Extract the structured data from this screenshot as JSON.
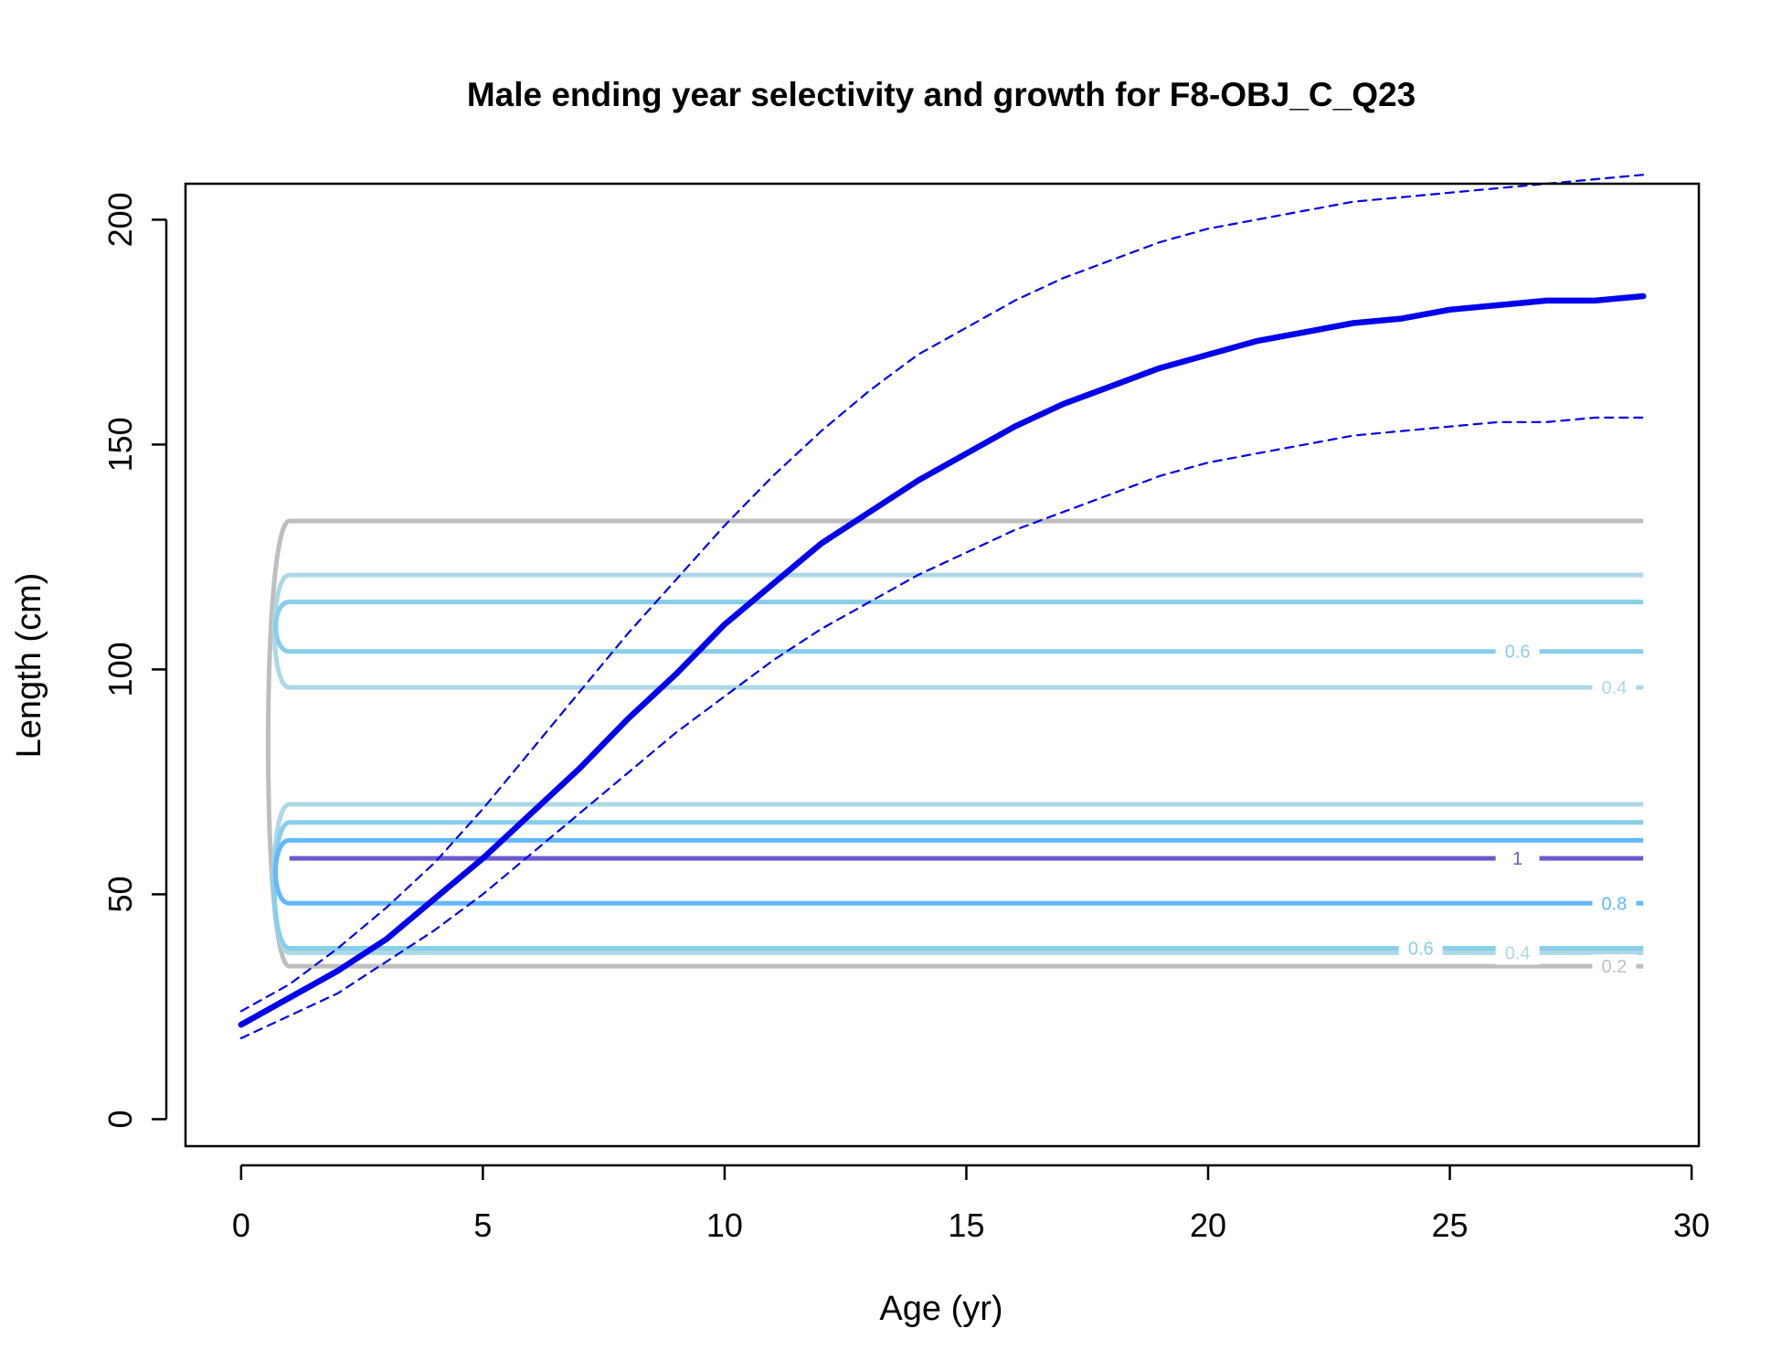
{
  "chart_data": {
    "type": "line",
    "title": "Male ending year selectivity and growth for F8-OBJ_C_Q23",
    "xlabel": "Age (yr)",
    "ylabel": "Length (cm)",
    "xlim": [
      -1.15,
      30.15
    ],
    "ylim": [
      -6,
      208
    ],
    "x_ticks": [
      0,
      5,
      10,
      15,
      20,
      25,
      30
    ],
    "y_ticks": [
      0,
      50,
      100,
      150,
      200
    ],
    "grid": false,
    "legend": "none",
    "series": [
      {
        "role": "mean",
        "color": "#0000ee",
        "style": "solid-thick",
        "x": [
          0,
          1,
          2,
          3,
          4,
          5,
          6,
          7,
          8,
          9,
          10,
          11,
          12,
          13,
          14,
          15,
          16,
          17,
          18,
          19,
          20,
          21,
          22,
          23,
          24,
          25,
          26,
          27,
          28,
          29
        ],
        "y": [
          21,
          27,
          33,
          40,
          49,
          58,
          68,
          78,
          89,
          99,
          110,
          119,
          128,
          135,
          142,
          148,
          154,
          159,
          163,
          167,
          170,
          173,
          175,
          177,
          178,
          180,
          181,
          182,
          182,
          183
        ]
      },
      {
        "role": "upper",
        "color": "#0000ee",
        "style": "dashed",
        "x": [
          0,
          1,
          2,
          3,
          4,
          5,
          6,
          7,
          8,
          9,
          10,
          11,
          12,
          13,
          14,
          15,
          16,
          17,
          18,
          19,
          20,
          21,
          22,
          23,
          24,
          25,
          26,
          27,
          28,
          29
        ],
        "y": [
          24,
          30,
          38,
          47,
          57,
          69,
          82,
          95,
          108,
          120,
          132,
          143,
          153,
          162,
          170,
          176,
          182,
          187,
          191,
          195,
          198,
          200,
          202,
          204,
          205,
          206,
          207,
          208,
          209,
          210
        ]
      },
      {
        "role": "lower",
        "color": "#0000ee",
        "style": "dashed",
        "x": [
          0,
          1,
          2,
          3,
          4,
          5,
          6,
          7,
          8,
          9,
          10,
          11,
          12,
          13,
          14,
          15,
          16,
          17,
          18,
          19,
          20,
          21,
          22,
          23,
          24,
          25,
          26,
          27,
          28,
          29
        ],
        "y": [
          18,
          23,
          28,
          35,
          42,
          50,
          59,
          68,
          77,
          86,
          94,
          102,
          109,
          115,
          121,
          126,
          131,
          135,
          139,
          143,
          146,
          148,
          150,
          152,
          153,
          154,
          155,
          155,
          156,
          156
        ]
      }
    ],
    "contours": [
      {
        "level": 0.2,
        "color": "#bebebe",
        "label": "0.2",
        "y_low": 34,
        "y_high": 133,
        "x_label": 28.4
      },
      {
        "level": 0.4,
        "color": "#add8e6",
        "label": "0.4",
        "y_low": 37,
        "y_high": 70,
        "x_label": 26.4
      },
      {
        "level": 0.4,
        "color": "#add8e6",
        "label": "0.4",
        "y_low": 96,
        "y_high": 121,
        "x_label": 28.4
      },
      {
        "level": 0.6,
        "color": "#87ceeb",
        "label": "0.6",
        "y_low": 38,
        "y_high": 66,
        "x_label": 24.4
      },
      {
        "level": 0.6,
        "color": "#87ceeb",
        "label": "0.6",
        "y_low": 104,
        "y_high": 115,
        "x_label": 26.4
      },
      {
        "level": 0.8,
        "color": "#63b8ff",
        "label": "0.8",
        "y_low": 48,
        "y_high": 62,
        "x_label": 28.4
      },
      {
        "level": 1,
        "color": "#6a5acd",
        "label": "1",
        "y_low": 58,
        "y_high": 58,
        "x_label": 26.4
      }
    ]
  }
}
